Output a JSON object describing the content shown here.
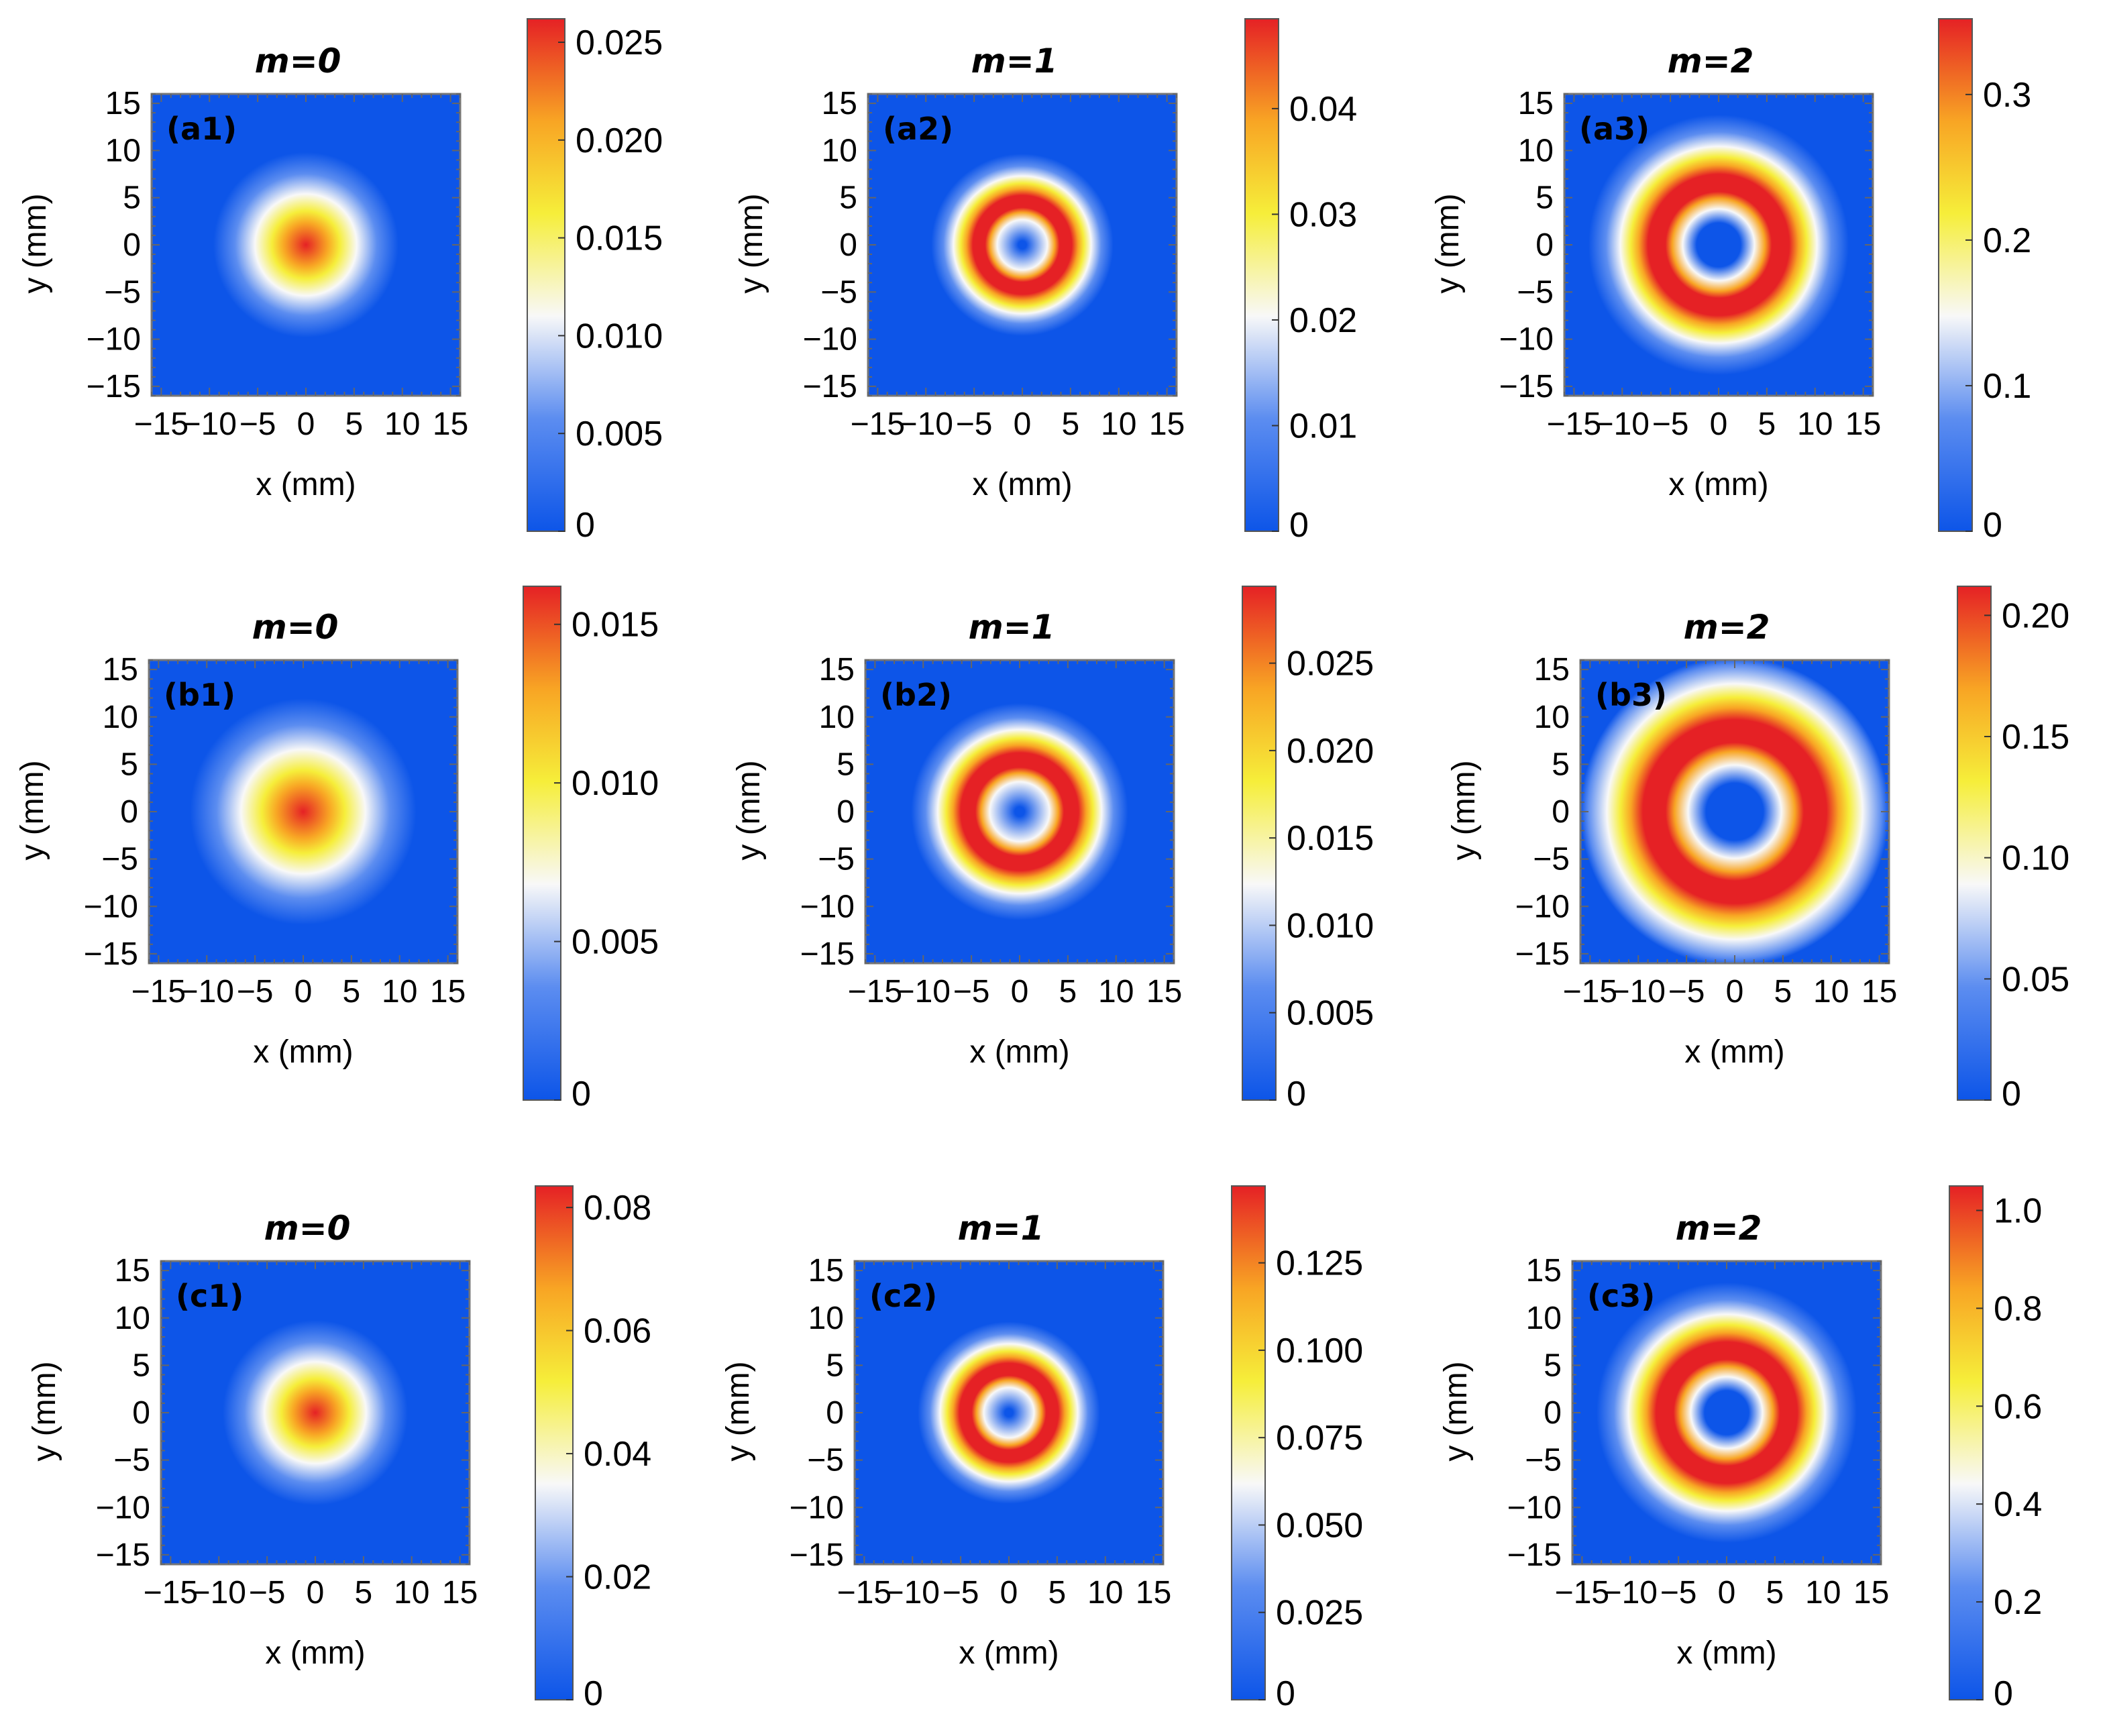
{
  "figure": {
    "x_tick_labels": [
      "−15",
      "−10",
      "−5",
      "0",
      "5",
      "10",
      "15"
    ],
    "y_tick_labels": [
      "15",
      "10",
      "5",
      "0",
      "−5",
      "−10",
      "−15"
    ]
  },
  "chart_data": [
    {
      "type": "heatmap",
      "panel": "(a1)",
      "title": "m=0",
      "xlabel": "x (mm)",
      "ylabel": "y (mm)",
      "xlim": [
        -16,
        16
      ],
      "ylim": [
        -16,
        16
      ],
      "mode_m": 0,
      "peak_radius_mm": 0,
      "beam_width_mm": 3.6,
      "colorbar": {
        "range": [
          0,
          0.0262
        ],
        "ticks": [
          0,
          0.005,
          0.01,
          0.015,
          0.02,
          0.025
        ],
        "tick_labels": [
          "0",
          "0.005",
          "0.010",
          "0.015",
          "0.020",
          "0.025"
        ]
      }
    },
    {
      "type": "heatmap",
      "panel": "(a2)",
      "title": "m=1",
      "xlabel": "x (mm)",
      "ylabel": "y (mm)",
      "xlim": [
        -16,
        16
      ],
      "ylim": [
        -16,
        16
      ],
      "mode_m": 1,
      "peak_radius_mm": 4.2,
      "beam_width_mm": 5.9,
      "colorbar": {
        "range": [
          0,
          0.0485
        ],
        "ticks": [
          0,
          0.01,
          0.02,
          0.03,
          0.04
        ],
        "tick_labels": [
          "0",
          "0.01",
          "0.02",
          "0.03",
          "0.04"
        ]
      }
    },
    {
      "type": "heatmap",
      "panel": "(a3)",
      "title": "m=2",
      "xlabel": "x (mm)",
      "ylabel": "y (mm)",
      "xlim": [
        -16,
        16
      ],
      "ylim": [
        -16,
        16
      ],
      "mode_m": 2,
      "peak_radius_mm": 6.0,
      "beam_width_mm": 6.0,
      "colorbar": {
        "range": [
          0,
          0.352
        ],
        "ticks": [
          0,
          0.1,
          0.2,
          0.3
        ],
        "tick_labels": [
          "0",
          "0.1",
          "0.2",
          "0.3"
        ]
      }
    },
    {
      "type": "heatmap",
      "panel": "(b1)",
      "title": "m=0",
      "xlabel": "x (mm)",
      "ylabel": "y (mm)",
      "xlim": [
        -16,
        16
      ],
      "ylim": [
        -16,
        16
      ],
      "mode_m": 0,
      "peak_radius_mm": 0,
      "beam_width_mm": 4.4,
      "colorbar": {
        "range": [
          0,
          0.0162
        ],
        "ticks": [
          0,
          0.005,
          0.01,
          0.015
        ],
        "tick_labels": [
          "0",
          "0.005",
          "0.010",
          "0.015"
        ]
      }
    },
    {
      "type": "heatmap",
      "panel": "(b2)",
      "title": "m=1",
      "xlabel": "x (mm)",
      "ylabel": "y (mm)",
      "xlim": [
        -16,
        16
      ],
      "ylim": [
        -16,
        16
      ],
      "mode_m": 1,
      "peak_radius_mm": 5.0,
      "beam_width_mm": 7.1,
      "colorbar": {
        "range": [
          0,
          0.0294
        ],
        "ticks": [
          0,
          0.005,
          0.01,
          0.015,
          0.02,
          0.025
        ],
        "tick_labels": [
          "0",
          "0.005",
          "0.010",
          "0.015",
          "0.020",
          "0.025"
        ]
      }
    },
    {
      "type": "heatmap",
      "panel": "(b3)",
      "title": "m=2",
      "xlabel": "x (mm)",
      "ylabel": "y (mm)",
      "xlim": [
        -16,
        16
      ],
      "ylim": [
        -16,
        16
      ],
      "mode_m": 2,
      "peak_radius_mm": 7.8,
      "beam_width_mm": 7.8,
      "colorbar": {
        "range": [
          0,
          0.212
        ],
        "ticks": [
          0,
          0.05,
          0.1,
          0.15,
          0.2
        ],
        "tick_labels": [
          "0",
          "0.05",
          "0.10",
          "0.15",
          "0.20"
        ]
      }
    },
    {
      "type": "heatmap",
      "panel": "(c1)",
      "title": "m=0",
      "xlabel": "x (mm)",
      "ylabel": "y (mm)",
      "xlim": [
        -16,
        16
      ],
      "ylim": [
        -16,
        16
      ],
      "mode_m": 0,
      "peak_radius_mm": 0,
      "beam_width_mm": 3.6,
      "colorbar": {
        "range": [
          0,
          0.0835
        ],
        "ticks": [
          0,
          0.02,
          0.04,
          0.06,
          0.08
        ],
        "tick_labels": [
          "0",
          "0.02",
          "0.04",
          "0.06",
          "0.08"
        ]
      }
    },
    {
      "type": "heatmap",
      "panel": "(c2)",
      "title": "m=1",
      "xlabel": "x (mm)",
      "ylabel": "y (mm)",
      "xlim": [
        -16,
        16
      ],
      "ylim": [
        -16,
        16
      ],
      "mode_m": 1,
      "peak_radius_mm": 4.2,
      "beam_width_mm": 5.9,
      "colorbar": {
        "range": [
          0,
          0.147
        ],
        "ticks": [
          0,
          0.025,
          0.05,
          0.075,
          0.1,
          0.125
        ],
        "tick_labels": [
          "0",
          "0.025",
          "0.050",
          "0.075",
          "0.100",
          "0.125"
        ]
      }
    },
    {
      "type": "heatmap",
      "panel": "(c3)",
      "title": "m=2",
      "xlabel": "x (mm)",
      "ylabel": "y (mm)",
      "xlim": [
        -16,
        16
      ],
      "ylim": [
        -16,
        16
      ],
      "mode_m": 2,
      "peak_radius_mm": 6.0,
      "beam_width_mm": 6.0,
      "colorbar": {
        "range": [
          0,
          1.05
        ],
        "ticks": [
          0,
          0.2,
          0.4,
          0.6,
          0.8,
          1.0
        ],
        "tick_labels": [
          "0",
          "0.2",
          "0.4",
          "0.6",
          "0.8",
          "1.0"
        ]
      }
    }
  ]
}
